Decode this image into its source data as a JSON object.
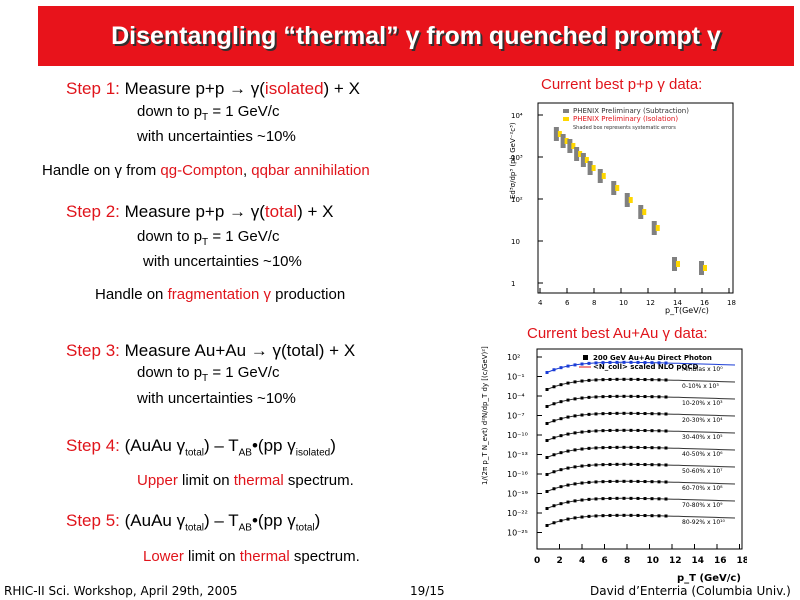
{
  "slide": {
    "title_pre": "Disentangling “thermal” γ from quenched prompt γ",
    "footer_left": "RHIC-II Sci. Workshop, April 29th, 2005",
    "page_number": "19/15",
    "footer_right": "David d’Enterria (Columbia Univ.)"
  },
  "step1": {
    "label": "Step 1:",
    "text_a": "Measure p+p → γ(",
    "text_b": "isolated",
    "text_c": ") + X",
    "line2a": "down to p",
    "line2sub": "T",
    "line2b": " = 1 GeV/c",
    "line3": "with uncertainties ~10%",
    "handle_a": "Handle on γ from ",
    "handle_b": "qg-Compton",
    "handle_c": ", ",
    "handle_d": "qqbar annihilation"
  },
  "step2": {
    "label": "Step 2:",
    "text_a": "Measure p+p → γ(",
    "text_b": "total",
    "text_c": ") + X",
    "line2a": "down to p",
    "line2sub": "T",
    "line2b": " = 1 GeV/c",
    "line3": "with uncertainties ~10%",
    "handle_a": "Handle on ",
    "handle_b": "fragmentation γ",
    "handle_c": " production"
  },
  "step3": {
    "label": "Step 3:",
    "text_a": "Measure Au+Au → γ(total) + X",
    "line2a": "down to p",
    "line2sub": "T",
    "line2b": " = 1 GeV/c",
    "line3": "with uncertainties ~10%"
  },
  "step4": {
    "label": "Step 4:",
    "p1": "(AuAu γ",
    "s1": "total",
    "p2": ") – T",
    "s2": "AB",
    "p3": "•(pp γ",
    "s3": "isolated",
    "p4": ")",
    "note_a": "Upper",
    "note_b": " limit on ",
    "note_c": "thermal",
    "note_d": " spectrum."
  },
  "step5": {
    "label": "Step 5:",
    "p1": "(AuAu γ",
    "s1": "total",
    "p2": ") – T",
    "s2": "AB",
    "p3": "•(pp γ",
    "s3": "total",
    "p4": ")",
    "note_a": "Lower",
    "note_b": " limit on ",
    "note_c": "thermal",
    "note_d": " spectrum."
  },
  "plot_pp": {
    "caption": "Current best p+p  γ data:",
    "legend1": "PHENIX Preliminary (Subtraction)",
    "legend2": "PHENIX Preliminary (Isolation)",
    "legend3": "Shaded box represents systematic errors",
    "ylabel": "Ed³σ/dp³ (pb GeV⁻²c³)",
    "xlabel": "p_T(GeV/c)",
    "yticks": [
      "10⁴",
      "10³",
      "10²",
      "10",
      "1"
    ],
    "xticks": [
      "4",
      "6",
      "8",
      "10",
      "12",
      "14",
      "16",
      "18"
    ],
    "colors": {
      "subtraction": "#808080",
      "isolation": "#ffd700"
    }
  },
  "plot_auau": {
    "caption": "Current best Au+Au γ data:",
    "legend1": "200 GeV Au+Au Direct Photon",
    "legend2": "<N_coll> scaled NLO pQCD",
    "ylabel": "1/(2π p_T N_evt) d²N/dp_T dy [(c/GeV)²]",
    "xlabel": "p_T (GeV/c)",
    "yticks": [
      "10²",
      "10⁻¹",
      "10⁻⁴",
      "10⁻⁷",
      "10⁻¹⁰",
      "10⁻¹³",
      "10⁻¹⁶",
      "10⁻¹⁹",
      "10⁻²²",
      "10⁻²⁵"
    ],
    "xticks": [
      "0",
      "2",
      "4",
      "6",
      "8",
      "10",
      "12",
      "14",
      "16",
      "18"
    ],
    "centralities": [
      "MinBias x 10⁰",
      "0-10% x 10³",
      "10-20% x 10³",
      "20-30% x 10⁴",
      "30-40% x 10⁵",
      "40-50% x 10⁶",
      "50-60% x 10⁷",
      "60-70% x 10⁸",
      "70-80% x 10⁹",
      "80-92% x 10¹⁰"
    ],
    "colors": {
      "minbias": "#1a3cd6",
      "data": "#000000"
    }
  }
}
